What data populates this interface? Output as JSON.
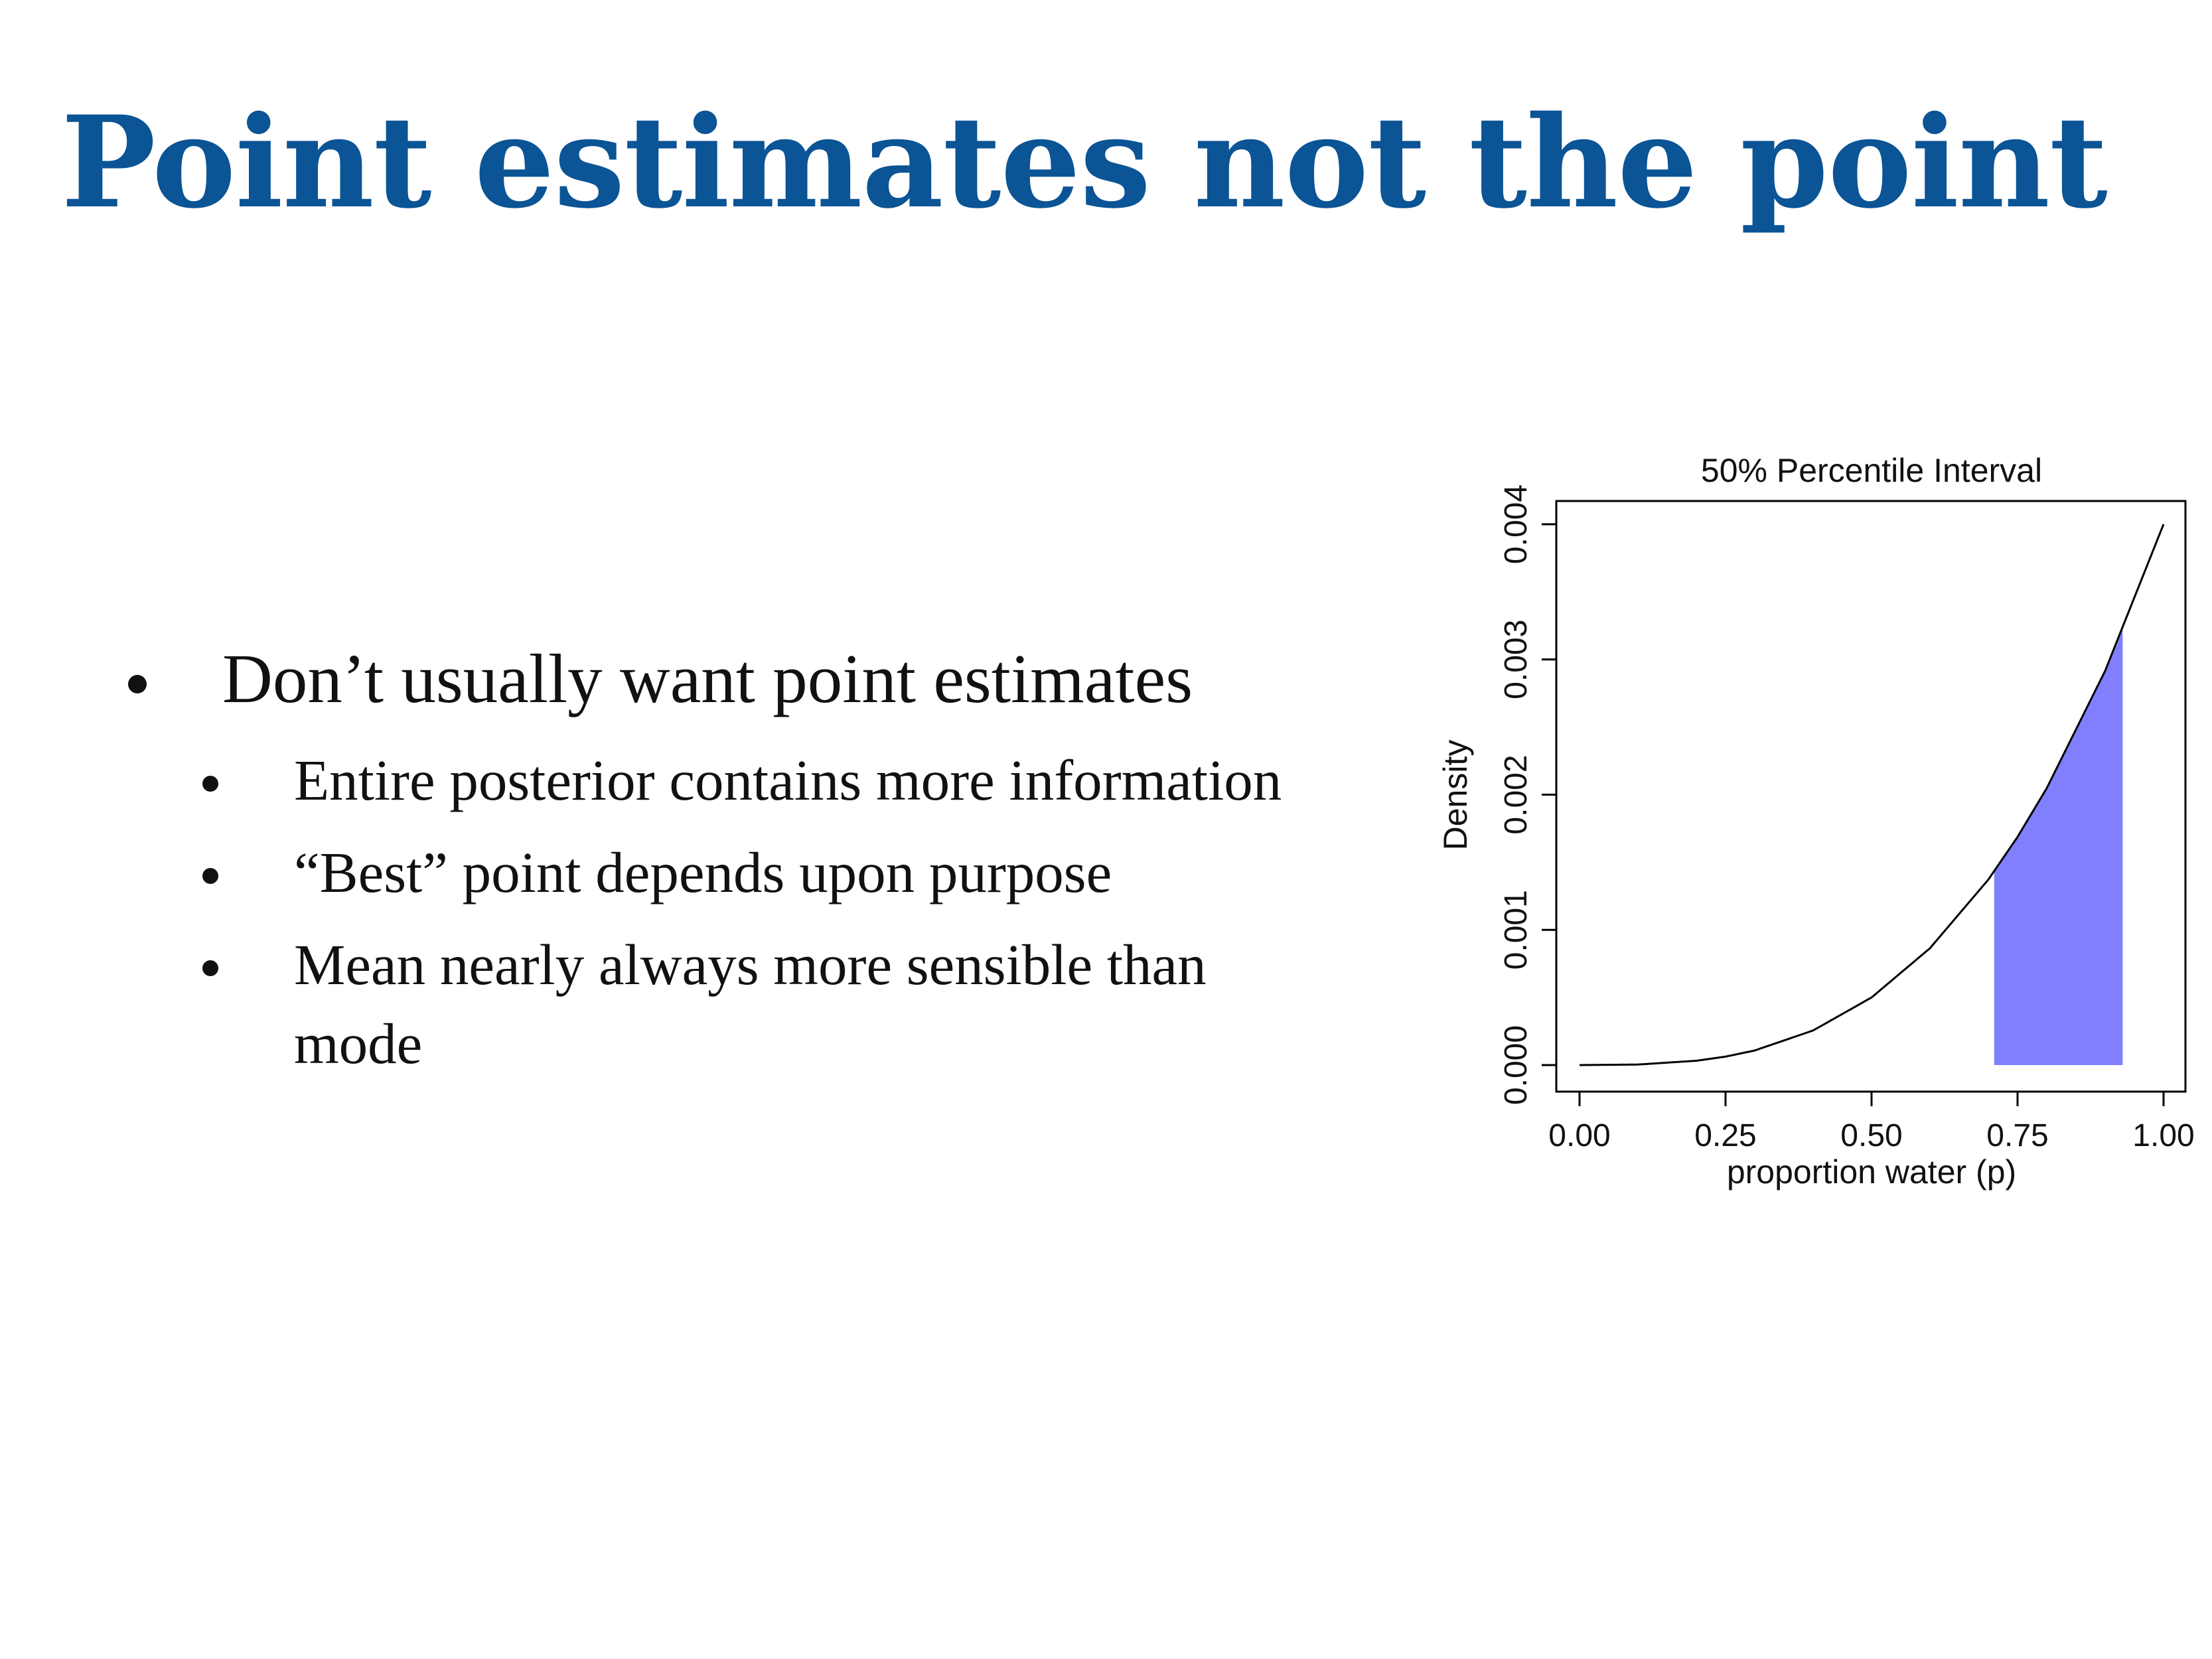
{
  "slide": {
    "title": "Point estimates not the point",
    "bullet": "Don’t usually want point estimates",
    "sub_bullets": [
      "Entire posterior contains more information",
      "“Best” point depends upon purpose",
      "Mean nearly always more sensible than mode"
    ]
  },
  "chart_data": {
    "type": "area",
    "title": "50% Percentile Interval",
    "xlabel": "proportion water (p)",
    "ylabel": "Density",
    "xlim": [
      0,
      1
    ],
    "ylim": [
      0,
      0.004
    ],
    "x_ticks": [
      "0.00",
      "0.25",
      "0.50",
      "0.75",
      "1.00"
    ],
    "y_ticks": [
      "0.000",
      "0.001",
      "0.002",
      "0.003",
      "0.004"
    ],
    "curve": {
      "x": [
        0,
        0.1,
        0.2,
        0.25,
        0.3,
        0.4,
        0.5,
        0.6,
        0.7,
        0.75,
        0.8,
        0.9,
        1.0
      ],
      "y": [
        0,
        4e-06,
        3.2e-05,
        6.25e-05,
        0.000108,
        0.000256,
        0.0005,
        0.000864,
        0.001372,
        0.0016875,
        0.002048,
        0.002916,
        0.004
      ]
    },
    "shaded_interval": [
      0.71,
      0.93
    ],
    "shade_color": "#8080ff",
    "line_color": "#000000",
    "grid": false,
    "legend": "none"
  }
}
